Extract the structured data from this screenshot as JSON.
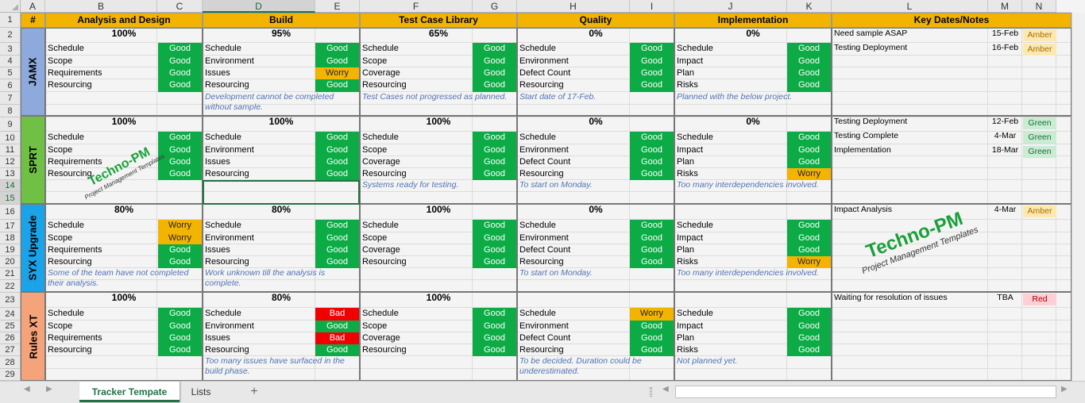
{
  "columns": [
    "A",
    "B",
    "C",
    "D",
    "E",
    "F",
    "G",
    "H",
    "I",
    "J",
    "K",
    "L",
    "M",
    "N"
  ],
  "selected_column": "D",
  "rows": [
    "1",
    "2",
    "3",
    "4",
    "5",
    "6",
    "7",
    "8",
    "9",
    "10",
    "11",
    "12",
    "13",
    "14",
    "15",
    "16",
    "17",
    "18",
    "19",
    "20",
    "21",
    "22",
    "23",
    "24",
    "25",
    "26",
    "27",
    "28",
    "29"
  ],
  "selected_rows": [
    "14",
    "15"
  ],
  "header_row": {
    "hash": "#",
    "phases": [
      "Analysis and Design",
      "Build",
      "Test Case Library",
      "Quality",
      "Implementation"
    ],
    "key_dates": "Key Dates/Notes"
  },
  "projects": [
    {
      "name": "JAMX",
      "color": "#8ea9db",
      "phases": [
        {
          "pct": "100%",
          "items": [
            [
              "Schedule",
              "Good"
            ],
            [
              "Scope",
              "Good"
            ],
            [
              "Requirements",
              "Good"
            ],
            [
              "Resourcing",
              "Good"
            ]
          ],
          "note": ""
        },
        {
          "pct": "95%",
          "items": [
            [
              "Schedule",
              "Good"
            ],
            [
              "Environment",
              "Good"
            ],
            [
              "Issues",
              "Worry"
            ],
            [
              "Resourcing",
              "Good"
            ]
          ],
          "note": "Development cannot be completed without sample."
        },
        {
          "pct": "65%",
          "items": [
            [
              "Schedule",
              "Good"
            ],
            [
              "Scope",
              "Good"
            ],
            [
              "Coverage",
              "Good"
            ],
            [
              "Resourcing",
              "Good"
            ]
          ],
          "note": "Test Cases not progressed as planned."
        },
        {
          "pct": "0%",
          "items": [
            [
              "Schedule",
              "Good"
            ],
            [
              "Environment",
              "Good"
            ],
            [
              "Defect Count",
              "Good"
            ],
            [
              "Resourcing",
              "Good"
            ]
          ],
          "note": "Start date of 17-Feb."
        },
        {
          "pct": "0%",
          "items": [
            [
              "Schedule",
              "Good"
            ],
            [
              "Impact",
              "Good"
            ],
            [
              "Plan",
              "Good"
            ],
            [
              "Risks",
              "Good"
            ]
          ],
          "note": "Planned with the below project."
        }
      ],
      "key_dates": [
        {
          "note": "Need sample ASAP",
          "date": "15-Feb",
          "status": "Amber"
        },
        {
          "note": "Testing Deployment",
          "date": "16-Feb",
          "status": "Amber"
        }
      ]
    },
    {
      "name": "SPRT",
      "color": "#6fc044",
      "phases": [
        {
          "pct": "100%",
          "items": [
            [
              "Schedule",
              "Good"
            ],
            [
              "Scope",
              "Good"
            ],
            [
              "Requirements",
              "Good"
            ],
            [
              "Resourcing",
              "Good"
            ]
          ],
          "note": ""
        },
        {
          "pct": "100%",
          "items": [
            [
              "Schedule",
              "Good"
            ],
            [
              "Environment",
              "Good"
            ],
            [
              "Issues",
              "Good"
            ],
            [
              "Resourcing",
              "Good"
            ]
          ],
          "note": ""
        },
        {
          "pct": "100%",
          "items": [
            [
              "Schedule",
              "Good"
            ],
            [
              "Scope",
              "Good"
            ],
            [
              "Coverage",
              "Good"
            ],
            [
              "Resourcing",
              "Good"
            ]
          ],
          "note": "Systems ready for testing."
        },
        {
          "pct": "0%",
          "items": [
            [
              "Schedule",
              "Good"
            ],
            [
              "Environment",
              "Good"
            ],
            [
              "Defect Count",
              "Good"
            ],
            [
              "Resourcing",
              "Good"
            ]
          ],
          "note": "To start on Monday."
        },
        {
          "pct": "0%",
          "items": [
            [
              "Schedule",
              "Good"
            ],
            [
              "Impact",
              "Good"
            ],
            [
              "Plan",
              "Good"
            ],
            [
              "Risks",
              "Worry"
            ]
          ],
          "note": "Too many interdependencies involved."
        }
      ],
      "key_dates": [
        {
          "note": "Testing Deployment",
          "date": "12-Feb",
          "status": "Green"
        },
        {
          "note": "Testing Complete",
          "date": "4-Mar",
          "status": "Green"
        },
        {
          "note": "Implementation",
          "date": "18-Mar",
          "status": "Green"
        }
      ]
    },
    {
      "name": "SYX Upgrade",
      "color": "#1aa3e8",
      "phases": [
        {
          "pct": "80%",
          "items": [
            [
              "Schedule",
              "Worry"
            ],
            [
              "Scope",
              "Worry"
            ],
            [
              "Requirements",
              "Good"
            ],
            [
              "Resourcing",
              "Good"
            ]
          ],
          "note": "Some of the team have not completed their analysis."
        },
        {
          "pct": "80%",
          "items": [
            [
              "Schedule",
              "Good"
            ],
            [
              "Environment",
              "Good"
            ],
            [
              "Issues",
              "Good"
            ],
            [
              "Resourcing",
              "Good"
            ]
          ],
          "note": "Work unknown till the analysis is complete."
        },
        {
          "pct": "100%",
          "items": [
            [
              "Schedule",
              "Good"
            ],
            [
              "Scope",
              "Good"
            ],
            [
              "Coverage",
              "Good"
            ],
            [
              "Resourcing",
              "Good"
            ]
          ],
          "note": ""
        },
        {
          "pct": "0%",
          "items": [
            [
              "Schedule",
              "Good"
            ],
            [
              "Environment",
              "Good"
            ],
            [
              "Defect Count",
              "Good"
            ],
            [
              "Resourcing",
              "Good"
            ]
          ],
          "note": "To start on Monday."
        },
        {
          "pct": "",
          "items": [
            [
              "Schedule",
              "Good"
            ],
            [
              "Impact",
              "Good"
            ],
            [
              "Plan",
              "Good"
            ],
            [
              "Risks",
              "Worry"
            ]
          ],
          "note": "Too many interdependencies involved."
        }
      ],
      "key_dates": [
        {
          "note": "Impact Analysis",
          "date": "4-Mar",
          "status": "Amber"
        }
      ]
    },
    {
      "name": "Rules XT",
      "color": "#f4a37a",
      "phases": [
        {
          "pct": "100%",
          "items": [
            [
              "Schedule",
              "Good"
            ],
            [
              "Scope",
              "Good"
            ],
            [
              "Requirements",
              "Good"
            ],
            [
              "Resourcing",
              "Good"
            ]
          ],
          "note": ""
        },
        {
          "pct": "80%",
          "items": [
            [
              "Schedule",
              "Bad"
            ],
            [
              "Environment",
              "Good"
            ],
            [
              "Issues",
              "Bad"
            ],
            [
              "Resourcing",
              "Good"
            ]
          ],
          "note": "Too many issues have surfaced in the build phase."
        },
        {
          "pct": "100%",
          "items": [
            [
              "Schedule",
              "Good"
            ],
            [
              "Scope",
              "Good"
            ],
            [
              "Coverage",
              "Good"
            ],
            [
              "Resourcing",
              "Good"
            ]
          ],
          "note": ""
        },
        {
          "pct": "",
          "items": [
            [
              "Schedule",
              "Worry"
            ],
            [
              "Environment",
              "Good"
            ],
            [
              "Defect Count",
              "Good"
            ],
            [
              "Resourcing",
              "Good"
            ]
          ],
          "note": "To be decided. Duration could be underestimated."
        },
        {
          "pct": "",
          "items": [
            [
              "Schedule",
              "Good"
            ],
            [
              "Impact",
              "Good"
            ],
            [
              "Plan",
              "Good"
            ],
            [
              "Risks",
              "Good"
            ]
          ],
          "note": "Not planned yet."
        }
      ],
      "key_dates": [
        {
          "note": "Waiting for resolution of issues",
          "date": "TBA",
          "status": "Red"
        }
      ]
    }
  ],
  "watermarks": [
    {
      "title": "Techno-PM",
      "subtitle": "Project Management Templates"
    },
    {
      "title": "Techno-PM",
      "subtitle": "Project Management Templates"
    }
  ],
  "tabs": {
    "active": "Tracker Tempate",
    "other": "Lists",
    "add_symbol": "+"
  },
  "colors": {
    "header": "#f3b400",
    "good": "#0cab45",
    "worry": "#f3b400",
    "bad": "#f00000",
    "excel_green": "#217346"
  }
}
